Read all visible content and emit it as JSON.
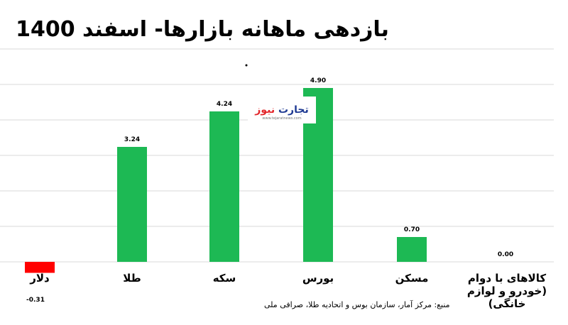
{
  "chart_data": {
    "type": "bar",
    "title": "بازدهی ماهانه بازارها- اسفند 1400",
    "categories": [
      "دلار",
      "طلا",
      "سکه",
      "بورس",
      "مسکن",
      "کالاهای با دوام|(خودرو و لوازم|خانگی)"
    ],
    "values": [
      -0.31,
      3.24,
      4.24,
      4.9,
      0.7,
      0.0
    ],
    "value_labels": [
      "-0.31",
      "3.24",
      "4.24",
      "4.90",
      "0.70",
      "0.00"
    ],
    "ylim": [
      -0.5,
      6
    ],
    "grid": true,
    "colors": {
      "positive": "#1db954",
      "negative": "#ff0000"
    },
    "source_note": "منبع: مرکز آمار، سازمان بوس و اتحادیه طلا، صرافی ملی"
  },
  "watermark": {
    "brand": "تجارت نیوز",
    "site": "www.tejaratnews.com"
  }
}
